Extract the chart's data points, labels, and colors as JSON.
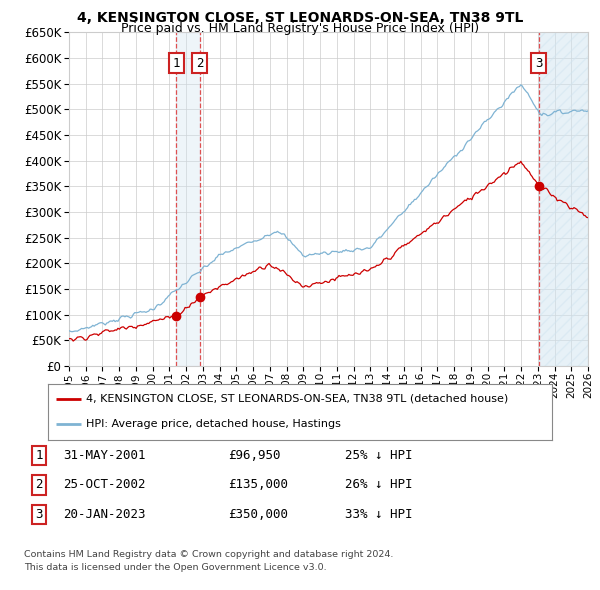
{
  "title": "4, KENSINGTON CLOSE, ST LEONARDS-ON-SEA, TN38 9TL",
  "subtitle": "Price paid vs. HM Land Registry's House Price Index (HPI)",
  "hpi_color": "#7fb3d3",
  "price_color": "#cc0000",
  "bg_color": "#ffffff",
  "grid_color": "#cccccc",
  "ylim": [
    0,
    650000
  ],
  "ytick_values": [
    0,
    50000,
    100000,
    150000,
    200000,
    250000,
    300000,
    350000,
    400000,
    450000,
    500000,
    550000,
    600000,
    650000
  ],
  "xmin": 1995,
  "xmax": 2026,
  "shade_color": "#d0e4f0",
  "transactions": [
    {
      "label": "1",
      "date": "31-MAY-2001",
      "price": 96950,
      "price_str": "£96,950",
      "pct_str": "25% ↓ HPI",
      "year": 2001.42
    },
    {
      "label": "2",
      "date": "25-OCT-2002",
      "price": 135000,
      "price_str": "£135,000",
      "pct_str": "26% ↓ HPI",
      "year": 2002.8
    },
    {
      "label": "3",
      "date": "20-JAN-2023",
      "price": 350000,
      "price_str": "£350,000",
      "pct_str": "33% ↓ HPI",
      "year": 2023.05
    }
  ],
  "legend_line1": "4, KENSINGTON CLOSE, ST LEONARDS-ON-SEA, TN38 9TL (detached house)",
  "legend_line2": "HPI: Average price, detached house, Hastings",
  "footer1": "Contains HM Land Registry data © Crown copyright and database right 2024.",
  "footer2": "This data is licensed under the Open Government Licence v3.0."
}
